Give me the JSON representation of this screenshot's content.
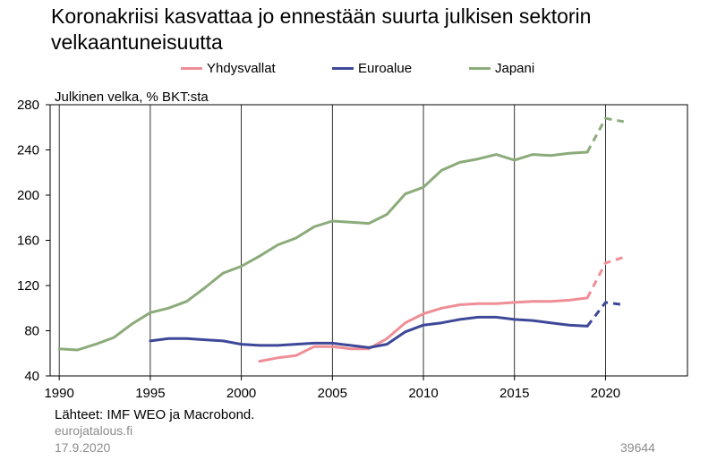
{
  "title_lines": [
    "Koronakriisi kasvattaa jo ennestään suurta julkisen sektorin",
    "velkaantuneisuutta"
  ],
  "y_axis_label": "Julkinen velka, % BKT:sta",
  "source": "Lähteet:  IMF  WEO ja Macrobond.",
  "site": "eurojatalous.fi",
  "date": "17.9.2020",
  "chart_code": "39644",
  "chart_data": {
    "type": "line",
    "x_ticks": [
      1990,
      1995,
      2000,
      2005,
      2010,
      2015,
      2020
    ],
    "y_ticks": [
      40,
      80,
      120,
      160,
      200,
      240,
      280
    ],
    "xlim": [
      1989.5,
      2024.5
    ],
    "ylim": [
      40,
      280
    ],
    "grid": "vertical",
    "legend_position": "top",
    "forecast_from": 2019,
    "series": [
      {
        "name": "Yhdysvallat",
        "color": "#ef8e96",
        "points": [
          [
            2001,
            53
          ],
          [
            2002,
            56
          ],
          [
            2003,
            58
          ],
          [
            2004,
            66
          ],
          [
            2005,
            66
          ],
          [
            2006,
            64
          ],
          [
            2007,
            64
          ],
          [
            2008,
            73
          ],
          [
            2009,
            87
          ],
          [
            2010,
            95
          ],
          [
            2011,
            100
          ],
          [
            2012,
            103
          ],
          [
            2013,
            104
          ],
          [
            2014,
            104
          ],
          [
            2015,
            105
          ],
          [
            2016,
            106
          ],
          [
            2017,
            106
          ],
          [
            2018,
            107
          ],
          [
            2019,
            109
          ],
          [
            2020,
            140
          ],
          [
            2021,
            145
          ]
        ]
      },
      {
        "name": "Euroalue",
        "color": "#3e4898",
        "points": [
          [
            1995,
            71
          ],
          [
            1996,
            73
          ],
          [
            1997,
            73
          ],
          [
            1998,
            72
          ],
          [
            1999,
            71
          ],
          [
            2000,
            68
          ],
          [
            2001,
            67
          ],
          [
            2002,
            67
          ],
          [
            2003,
            68
          ],
          [
            2004,
            69
          ],
          [
            2005,
            69
          ],
          [
            2006,
            67
          ],
          [
            2007,
            65
          ],
          [
            2008,
            68
          ],
          [
            2009,
            79
          ],
          [
            2010,
            85
          ],
          [
            2011,
            87
          ],
          [
            2012,
            90
          ],
          [
            2013,
            92
          ],
          [
            2014,
            92
          ],
          [
            2015,
            90
          ],
          [
            2016,
            89
          ],
          [
            2017,
            87
          ],
          [
            2018,
            85
          ],
          [
            2019,
            84
          ],
          [
            2020,
            105
          ],
          [
            2021,
            103
          ]
        ]
      },
      {
        "name": "Japani",
        "color": "#8bab7a",
        "points": [
          [
            1990,
            64
          ],
          [
            1991,
            63
          ],
          [
            1992,
            68
          ],
          [
            1993,
            74
          ],
          [
            1994,
            86
          ],
          [
            1995,
            96
          ],
          [
            1996,
            100
          ],
          [
            1997,
            106
          ],
          [
            1998,
            118
          ],
          [
            1999,
            131
          ],
          [
            2000,
            137
          ],
          [
            2001,
            146
          ],
          [
            2002,
            156
          ],
          [
            2003,
            162
          ],
          [
            2004,
            172
          ],
          [
            2005,
            177
          ],
          [
            2006,
            176
          ],
          [
            2007,
            175
          ],
          [
            2008,
            183
          ],
          [
            2009,
            201
          ],
          [
            2010,
            207
          ],
          [
            2011,
            222
          ],
          [
            2012,
            229
          ],
          [
            2013,
            232
          ],
          [
            2014,
            236
          ],
          [
            2015,
            231
          ],
          [
            2016,
            236
          ],
          [
            2017,
            235
          ],
          [
            2018,
            237
          ],
          [
            2019,
            238
          ],
          [
            2020,
            268
          ],
          [
            2021,
            265
          ]
        ]
      }
    ]
  }
}
